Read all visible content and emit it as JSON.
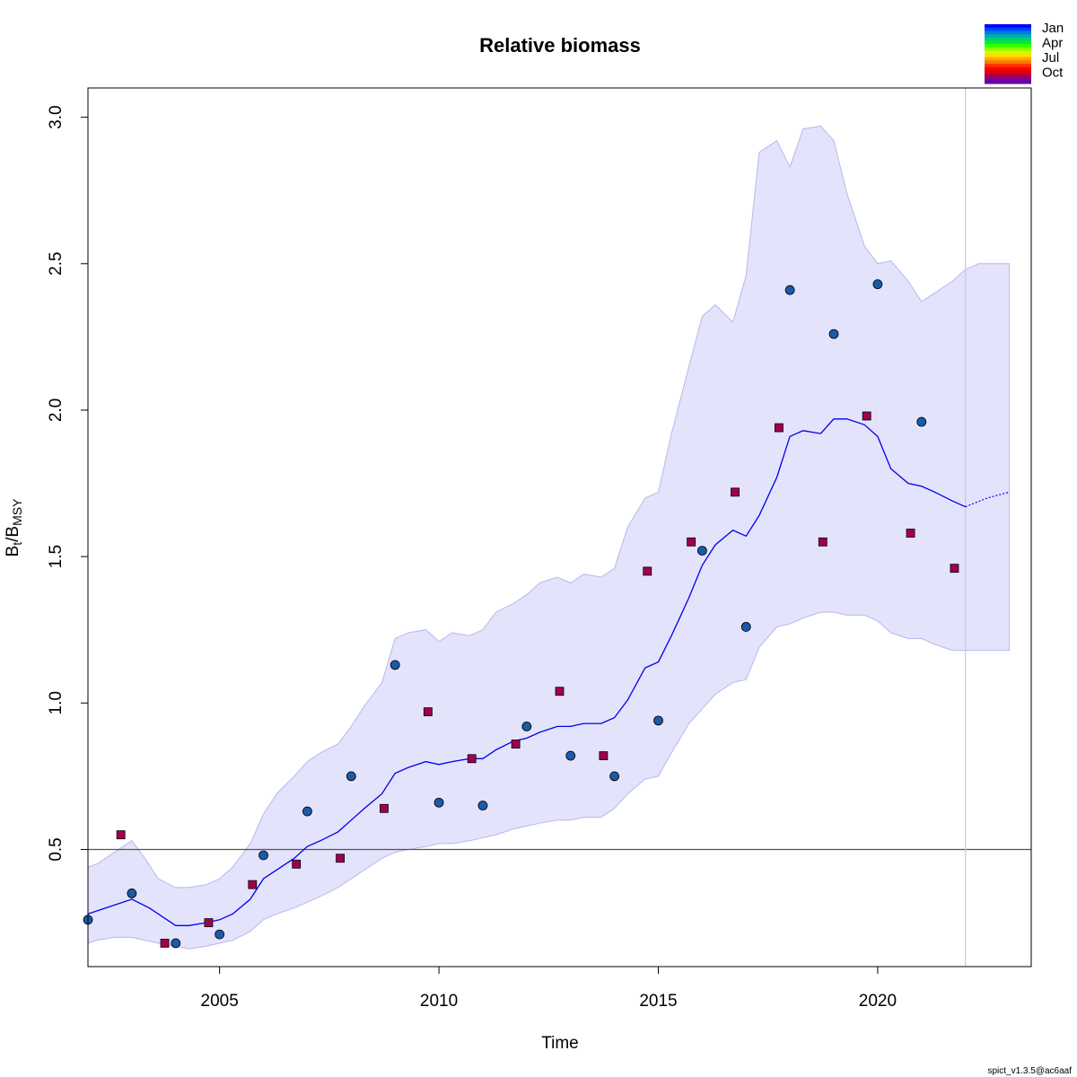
{
  "chart_data": {
    "type": "line",
    "title": "Relative biomass",
    "xlabel": "Time",
    "ylabel_main": "B",
    "ylabel_sub1": "t",
    "ylabel_slash": "/B",
    "ylabel_sub2": "MSY",
    "xlim": [
      2002.0,
      2023.5
    ],
    "ylim": [
      0.1,
      3.1
    ],
    "x_ticks": [
      2005,
      2010,
      2015,
      2020
    ],
    "y_ticks": [
      0.5,
      1.0,
      1.5,
      2.0,
      2.5,
      3.0
    ],
    "x_tick_labels": [
      "2005",
      "2010",
      "2015",
      "2020"
    ],
    "y_tick_labels": [
      "0.5",
      "1.0",
      "1.5",
      "2.0",
      "2.5",
      "3.0"
    ],
    "reference_line_y": 0.5,
    "forecast_start_x": 2022.0,
    "colors": {
      "band": "#e3e3fc",
      "band_edge": "#b8b8ee",
      "estimate_line": "#0000ee",
      "reference_line": "#555555",
      "forecast_marker": "#c8c8d8",
      "circle_fill": "#1a5ba8",
      "square_fill": "#a0004f"
    },
    "confidence_band": {
      "x": [
        2002.0,
        2002.2,
        2002.6,
        2003.0,
        2003.3,
        2003.6,
        2004.0,
        2004.3,
        2004.7,
        2005.0,
        2005.3,
        2005.7,
        2006.0,
        2006.3,
        2006.7,
        2007.0,
        2007.3,
        2007.7,
        2008.0,
        2008.3,
        2008.7,
        2009.0,
        2009.3,
        2009.7,
        2010.0,
        2010.3,
        2010.7,
        2011.0,
        2011.3,
        2011.7,
        2012.0,
        2012.3,
        2012.7,
        2013.0,
        2013.3,
        2013.7,
        2014.0,
        2014.3,
        2014.7,
        2015.0,
        2015.3,
        2015.7,
        2016.0,
        2016.3,
        2016.7,
        2017.0,
        2017.3,
        2017.7,
        2018.0,
        2018.3,
        2018.7,
        2019.0,
        2019.3,
        2019.7,
        2020.0,
        2020.3,
        2020.7,
        2021.0,
        2021.3,
        2021.7,
        2022.0,
        2022.3,
        2022.7,
        2023.0
      ],
      "upper": [
        0.44,
        0.45,
        0.49,
        0.53,
        0.47,
        0.4,
        0.37,
        0.37,
        0.38,
        0.4,
        0.44,
        0.52,
        0.62,
        0.69,
        0.75,
        0.8,
        0.83,
        0.86,
        0.92,
        0.99,
        1.07,
        1.22,
        1.24,
        1.25,
        1.21,
        1.24,
        1.23,
        1.25,
        1.31,
        1.34,
        1.37,
        1.41,
        1.43,
        1.41,
        1.44,
        1.43,
        1.46,
        1.6,
        1.7,
        1.72,
        1.92,
        2.15,
        2.32,
        2.36,
        2.3,
        2.46,
        2.88,
        2.92,
        2.83,
        2.96,
        2.97,
        2.92,
        2.74,
        2.56,
        2.5,
        2.51,
        2.44,
        2.37,
        2.4,
        2.44,
        2.48,
        2.5,
        2.5,
        2.5
      ],
      "lower": [
        0.18,
        0.19,
        0.2,
        0.2,
        0.19,
        0.18,
        0.17,
        0.16,
        0.17,
        0.18,
        0.19,
        0.22,
        0.26,
        0.28,
        0.3,
        0.32,
        0.34,
        0.37,
        0.4,
        0.43,
        0.47,
        0.49,
        0.5,
        0.51,
        0.52,
        0.52,
        0.53,
        0.54,
        0.55,
        0.57,
        0.58,
        0.59,
        0.6,
        0.6,
        0.61,
        0.61,
        0.64,
        0.69,
        0.74,
        0.75,
        0.83,
        0.93,
        0.98,
        1.03,
        1.07,
        1.08,
        1.19,
        1.26,
        1.27,
        1.29,
        1.31,
        1.31,
        1.3,
        1.3,
        1.28,
        1.24,
        1.22,
        1.22,
        1.2,
        1.18,
        1.18,
        1.18,
        1.18,
        1.18
      ]
    },
    "estimate": {
      "x": [
        2002.0,
        2002.6,
        2003.0,
        2003.4,
        2004.0,
        2004.3,
        2004.7,
        2005.0,
        2005.3,
        2005.7,
        2006.0,
        2006.3,
        2006.7,
        2007.0,
        2007.3,
        2007.7,
        2008.0,
        2008.3,
        2008.7,
        2009.0,
        2009.3,
        2009.7,
        2010.0,
        2010.3,
        2010.7,
        2011.0,
        2011.3,
        2011.7,
        2012.0,
        2012.3,
        2012.7,
        2013.0,
        2013.3,
        2013.7,
        2014.0,
        2014.3,
        2014.7,
        2015.0,
        2015.3,
        2015.7,
        2016.0,
        2016.3,
        2016.7,
        2017.0,
        2017.3,
        2017.7,
        2018.0,
        2018.3,
        2018.7,
        2019.0,
        2019.3,
        2019.7,
        2020.0,
        2020.3,
        2020.7,
        2021.0,
        2021.3,
        2021.7,
        2022.0
      ],
      "y": [
        0.28,
        0.31,
        0.33,
        0.3,
        0.24,
        0.24,
        0.25,
        0.26,
        0.28,
        0.33,
        0.4,
        0.43,
        0.47,
        0.51,
        0.53,
        0.56,
        0.6,
        0.64,
        0.69,
        0.76,
        0.78,
        0.8,
        0.79,
        0.8,
        0.81,
        0.81,
        0.84,
        0.87,
        0.88,
        0.9,
        0.92,
        0.92,
        0.93,
        0.93,
        0.95,
        1.01,
        1.12,
        1.14,
        1.23,
        1.36,
        1.47,
        1.54,
        1.59,
        1.57,
        1.64,
        1.77,
        1.91,
        1.93,
        1.92,
        1.97,
        1.97,
        1.95,
        1.91,
        1.8,
        1.75,
        1.74,
        1.72,
        1.69,
        1.67
      ]
    },
    "forecast": {
      "x": [
        2022.0,
        2022.5,
        2023.0
      ],
      "y": [
        1.67,
        1.7,
        1.72
      ]
    },
    "series": [
      {
        "marker": "circle",
        "x": [
          2002.0,
          2003.0,
          2004.0,
          2005.0,
          2006.0,
          2007.0,
          2008.0,
          2009.0,
          2010.0,
          2011.0,
          2012.0,
          2013.0,
          2014.0,
          2015.0,
          2016.0,
          2017.0,
          2018.0,
          2019.0,
          2020.0,
          2021.0
        ],
        "y": [
          0.26,
          0.35,
          0.18,
          0.21,
          0.48,
          0.63,
          0.75,
          1.13,
          0.66,
          0.65,
          0.92,
          0.82,
          0.75,
          0.94,
          1.52,
          1.26,
          2.41,
          2.26,
          2.43,
          1.96
        ]
      },
      {
        "marker": "square",
        "x": [
          2002.75,
          2003.75,
          2004.75,
          2005.75,
          2006.75,
          2007.75,
          2008.75,
          2009.75,
          2010.75,
          2011.75,
          2012.75,
          2013.75,
          2014.75,
          2015.75,
          2016.75,
          2017.75,
          2018.75,
          2019.75,
          2020.75,
          2021.75
        ],
        "y": [
          0.55,
          0.18,
          0.25,
          0.38,
          0.45,
          0.47,
          0.64,
          0.97,
          0.81,
          0.86,
          1.04,
          0.82,
          1.45,
          1.55,
          1.72,
          1.94,
          1.55,
          1.98,
          1.58,
          1.46
        ]
      }
    ],
    "legend": {
      "placement": "top-right",
      "labels": [
        "Jan",
        "Apr",
        "Jul",
        "Oct"
      ],
      "colors": [
        "#0000ff",
        "#0044ff",
        "#0077ee",
        "#00aaaa",
        "#00cc77",
        "#00ee33",
        "#33ff00",
        "#88ff00",
        "#ccff00",
        "#ffdd00",
        "#ffaa00",
        "#ff7700",
        "#ff3300",
        "#ff0000",
        "#dd0000",
        "#aa0044",
        "#880088",
        "#6600aa"
      ]
    },
    "footer": "spict_v1.3.5@ac6aaf"
  }
}
